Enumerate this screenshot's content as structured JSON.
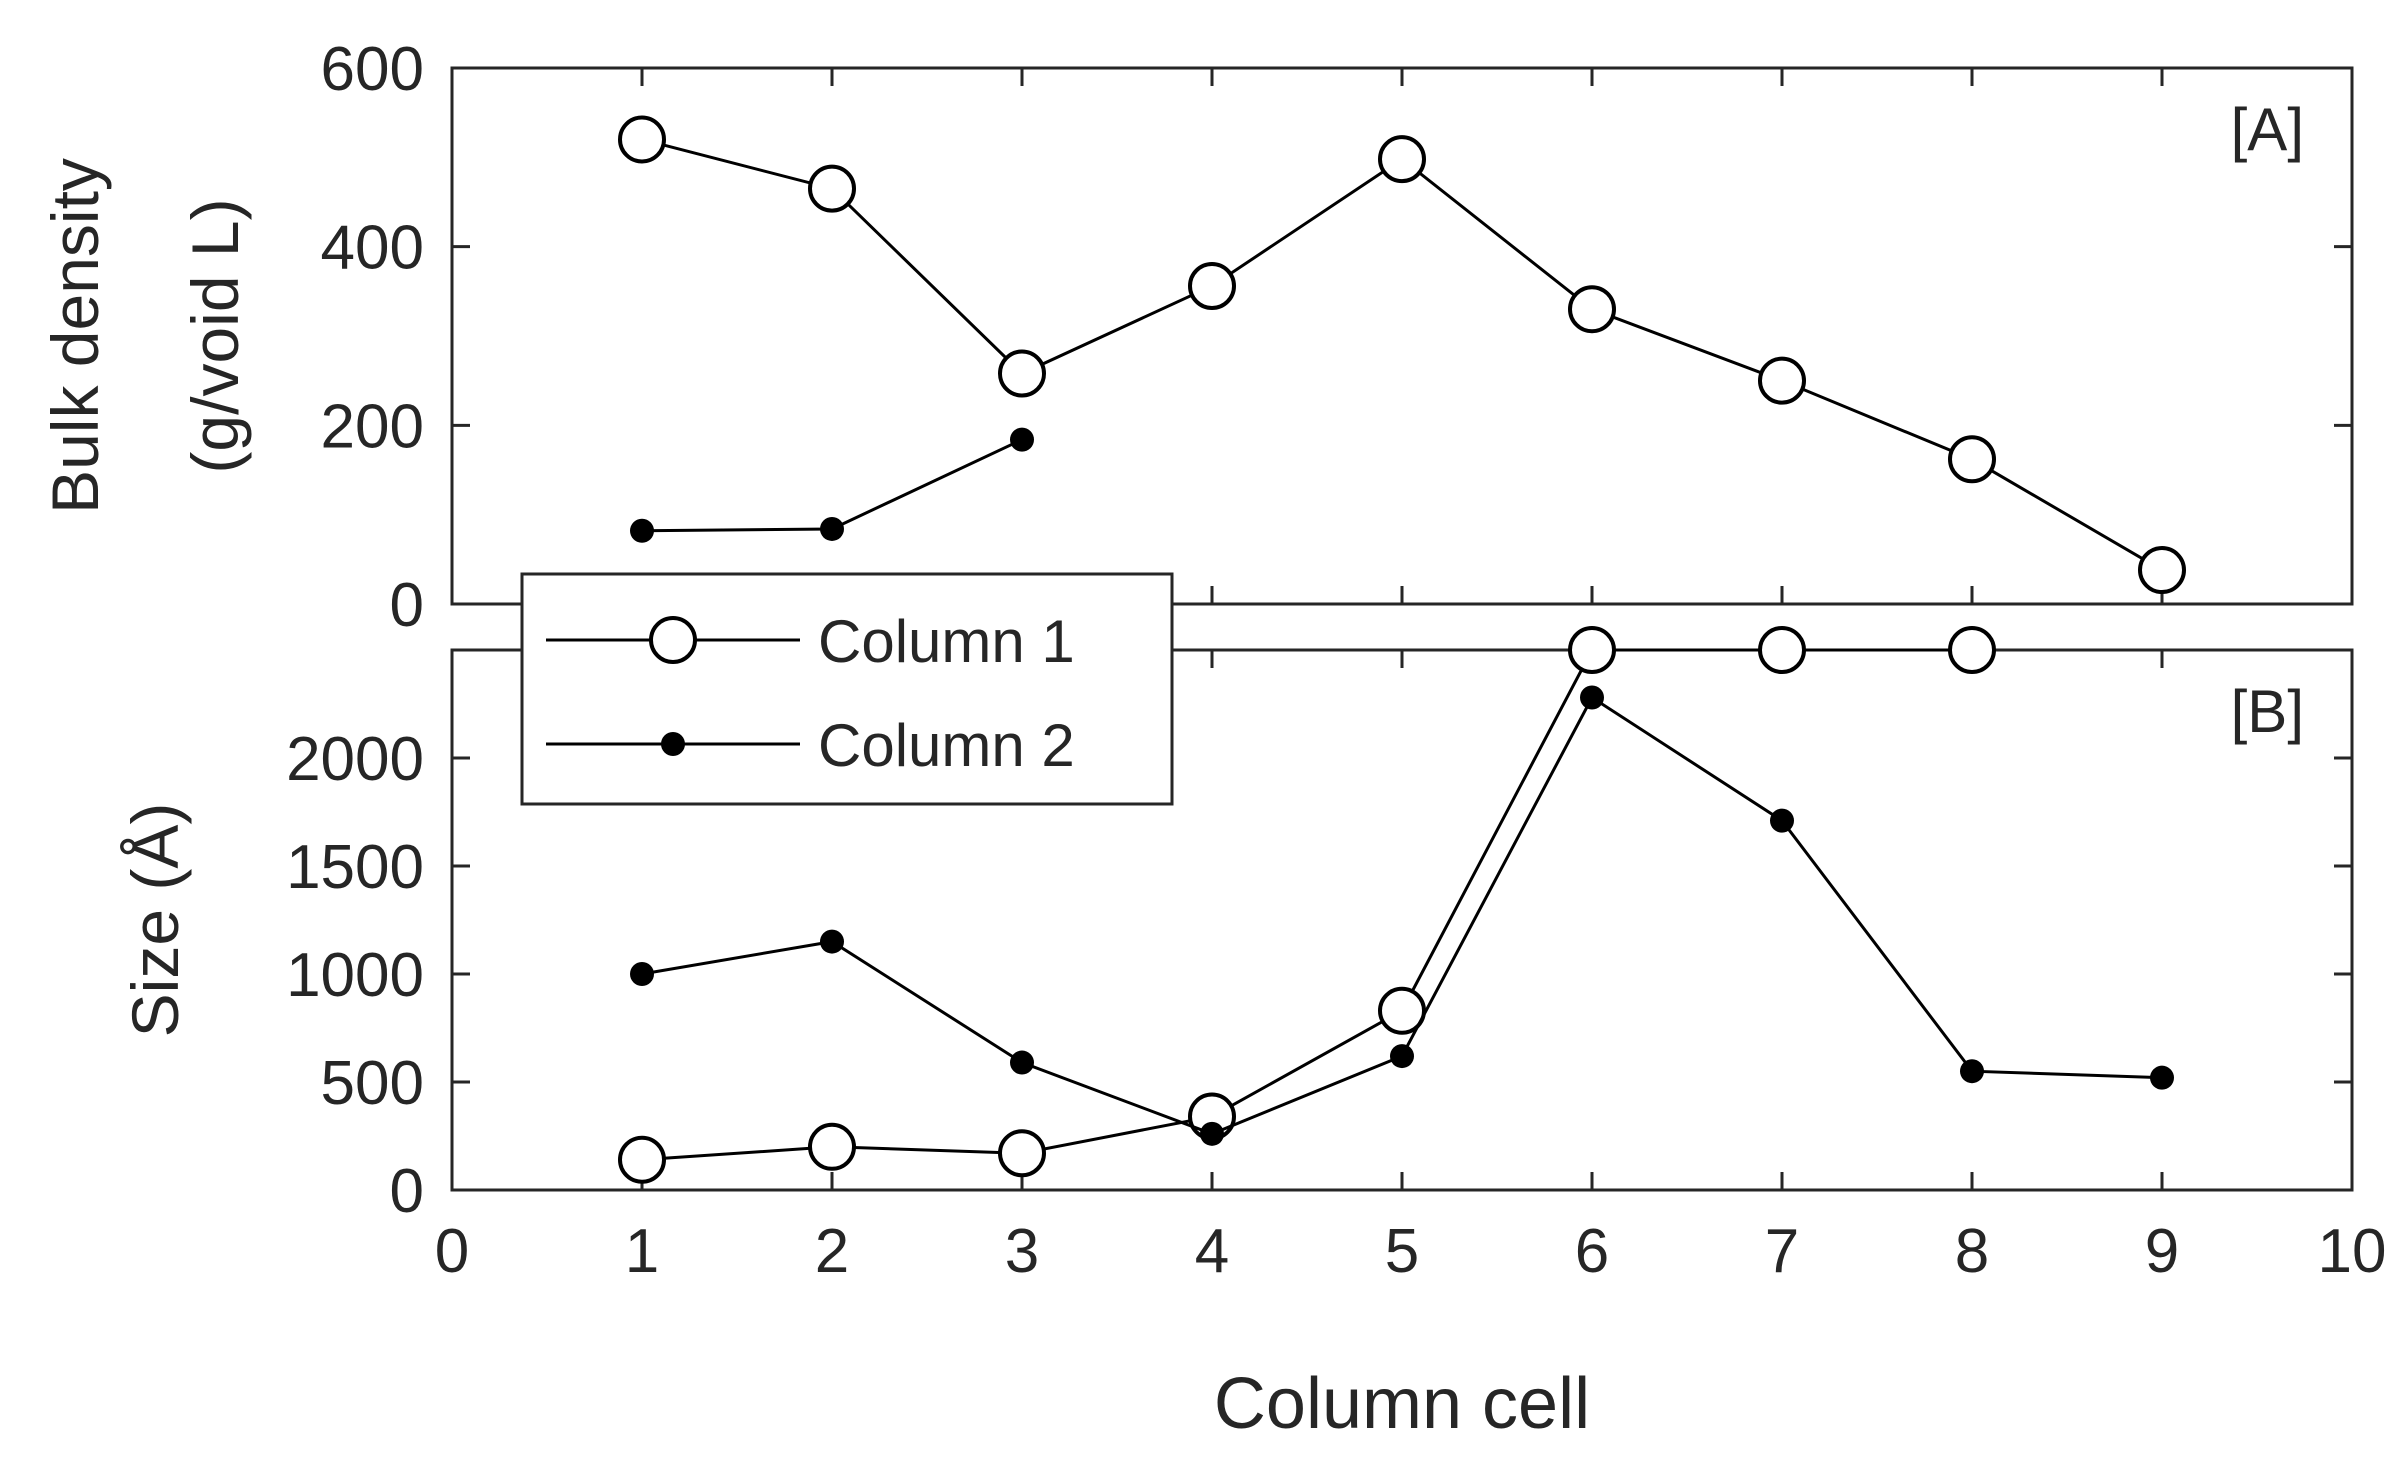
{
  "chart_data": [
    {
      "type": "line",
      "panel_label": "[A]",
      "ylabel": "Bulk density",
      "ylabel_line2": "(g/void L)",
      "xlabel": "",
      "xlim": [
        0,
        10
      ],
      "ylim": [
        0,
        600
      ],
      "yticks": [
        0,
        200,
        400,
        600
      ],
      "grid": false,
      "series": [
        {
          "name": "Column 1",
          "marker": "open-circle",
          "x": [
            1,
            2,
            3,
            4,
            5,
            6,
            7,
            8,
            9
          ],
          "y": [
            520,
            465,
            258,
            356,
            498,
            330,
            250,
            162,
            38
          ]
        },
        {
          "name": "Column 2",
          "marker": "filled-dot",
          "x": [
            1,
            2,
            3
          ],
          "y": [
            82,
            84,
            184
          ]
        }
      ]
    },
    {
      "type": "line",
      "panel_label": "[B]",
      "ylabel": "Size (Å)",
      "xlabel": "Column cell",
      "xlim": [
        0,
        10
      ],
      "ylim": [
        0,
        2500
      ],
      "xticks": [
        0,
        1,
        2,
        3,
        4,
        5,
        6,
        7,
        8,
        9,
        10
      ],
      "yticks": [
        0,
        500,
        1000,
        1500,
        2000
      ],
      "grid": false,
      "legend_position": "top-left",
      "series": [
        {
          "name": "Column 1",
          "marker": "open-circle",
          "x": [
            1,
            2,
            3,
            4,
            5,
            6,
            7,
            8
          ],
          "y": [
            140,
            200,
            170,
            340,
            830,
            2500,
            2500,
            2500
          ]
        },
        {
          "name": "Column 2",
          "marker": "filled-dot",
          "x": [
            1,
            2,
            3,
            4,
            5,
            6,
            7,
            8,
            9
          ],
          "y": [
            1000,
            1150,
            590,
            260,
            620,
            2280,
            1710,
            550,
            520
          ]
        }
      ]
    }
  ],
  "colors": {
    "line": "#000000",
    "axis": "#262626",
    "text": "#262626",
    "background": "#ffffff"
  }
}
